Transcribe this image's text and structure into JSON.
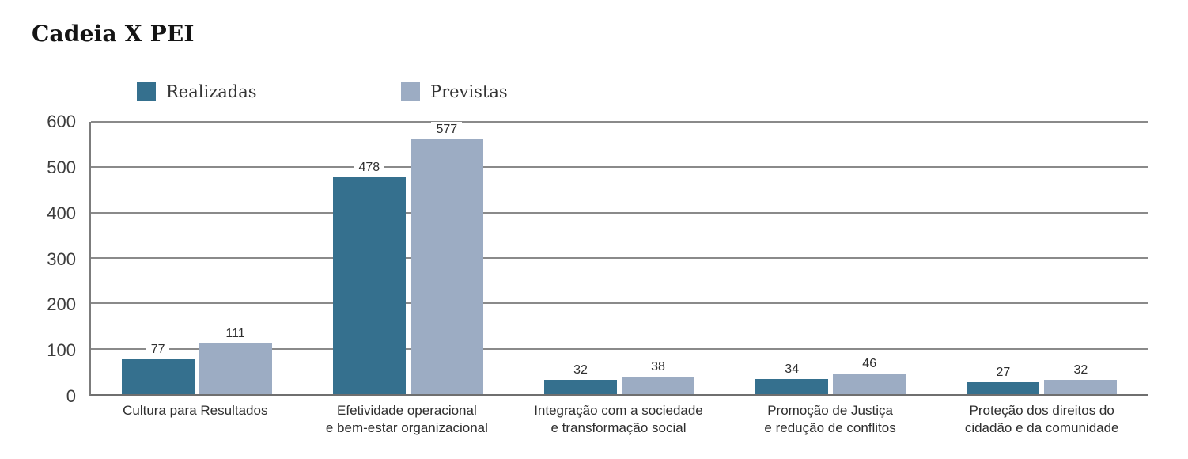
{
  "chart_data": {
    "type": "bar",
    "title": "Cadeia X PEI",
    "categories": [
      "Cultura para Resultados",
      "Efetividade operacional\ne bem-estar organizacional",
      "Integração com a sociedade\ne transformação social",
      "Promoção de Justiça\ne redução de conflitos",
      "Proteção dos direitos do\ncidadão e da comunidade"
    ],
    "series": [
      {
        "name": "Realizadas",
        "color": "#35708e",
        "values": [
          77,
          478,
          32,
          34,
          27
        ]
      },
      {
        "name": "Previstas",
        "color": "#9cacc3",
        "values": [
          111,
          577,
          38,
          46,
          32
        ]
      }
    ],
    "ylim": [
      0,
      600
    ],
    "yticks": [
      600,
      500,
      400,
      300,
      200,
      100,
      0
    ],
    "grid": true,
    "legend_position": "top",
    "colors": {
      "grid": "#8a8a8a",
      "axis": "#6f6f6f",
      "title": "#141414",
      "text": "#2e2e2e"
    }
  }
}
